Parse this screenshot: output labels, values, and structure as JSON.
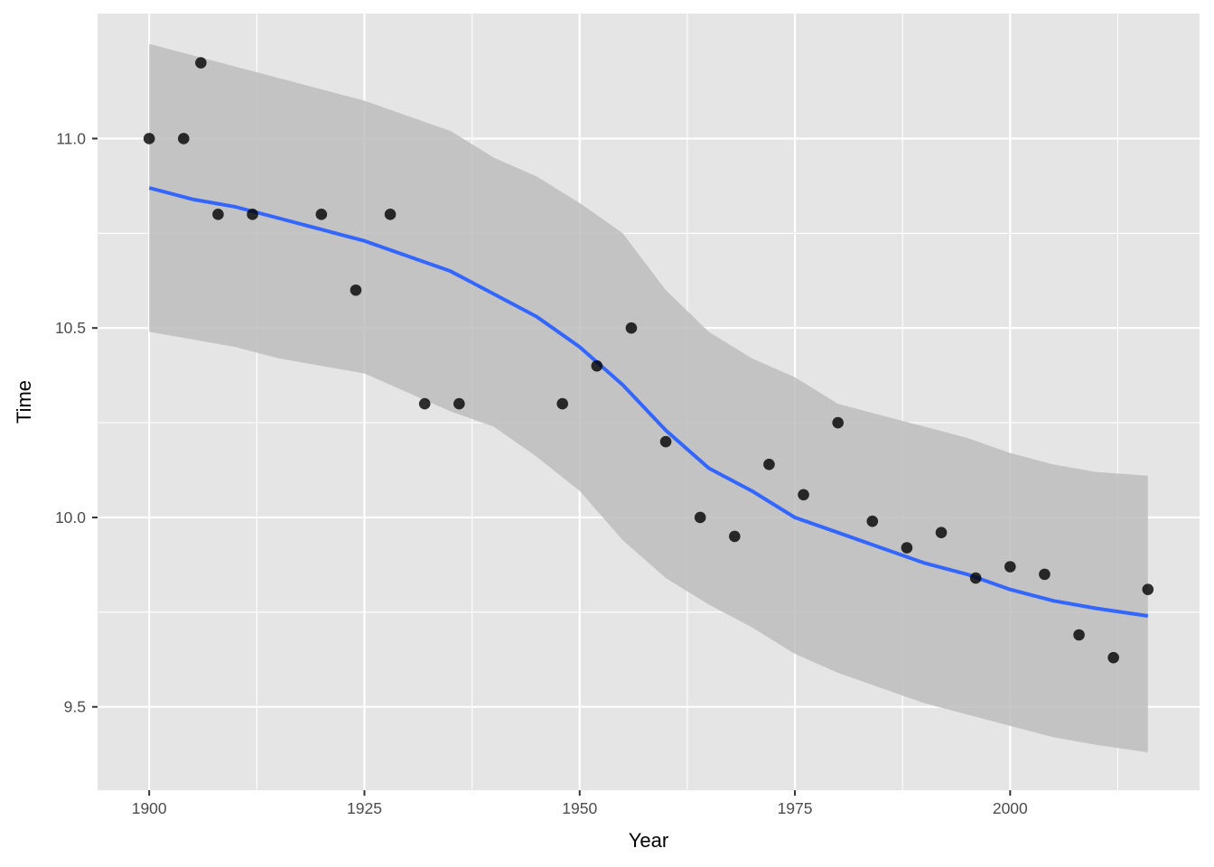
{
  "chart_data": {
    "type": "scatter",
    "title": "",
    "xlabel": "Year",
    "ylabel": "Time",
    "xlim": [
      1894,
      2022
    ],
    "ylim": [
      9.28,
      11.33
    ],
    "x_ticks": [
      1900,
      1925,
      1950,
      1975,
      2000
    ],
    "x_tick_labels": [
      "1900",
      "1925",
      "1950",
      "1975",
      "2000"
    ],
    "x_minor_ticks": [
      1912.5,
      1937.5,
      1962.5,
      1987.5,
      2012.5
    ],
    "y_ticks": [
      9.5,
      10.0,
      10.5,
      11.0
    ],
    "y_tick_labels": [
      "9.5",
      "10.0",
      "10.5",
      "11.0"
    ],
    "y_minor_ticks": [
      9.75,
      10.25,
      10.75
    ],
    "grid": true,
    "legend": "none",
    "colors": {
      "panel_background": "#e5e5e5",
      "grid": "#ffffff",
      "points": "#000000",
      "smooth_line": "#3366ff",
      "confidence_band": "#bdbdbd"
    },
    "points": {
      "x": [
        1900,
        1904,
        1906,
        1908,
        1912,
        1920,
        1924,
        1928,
        1932,
        1936,
        1948,
        1952,
        1956,
        1960,
        1964,
        1968,
        1972,
        1976,
        1980,
        1984,
        1988,
        1992,
        1996,
        2000,
        2004,
        2008,
        2012,
        2016
      ],
      "y": [
        11.0,
        11.0,
        11.2,
        10.8,
        10.8,
        10.8,
        10.6,
        10.8,
        10.3,
        10.3,
        10.3,
        10.4,
        10.5,
        10.2,
        10.0,
        9.95,
        10.14,
        10.06,
        10.25,
        9.99,
        9.92,
        9.96,
        9.84,
        9.87,
        9.85,
        9.69,
        9.63,
        9.81
      ]
    },
    "smooth_line": {
      "x": [
        1900,
        1905,
        1910,
        1915,
        1920,
        1925,
        1930,
        1935,
        1940,
        1945,
        1950,
        1955,
        1960,
        1965,
        1970,
        1975,
        1980,
        1985,
        1990,
        1995,
        2000,
        2005,
        2010,
        2016
      ],
      "y": [
        10.87,
        10.84,
        10.82,
        10.79,
        10.76,
        10.73,
        10.69,
        10.65,
        10.59,
        10.53,
        10.45,
        10.35,
        10.23,
        10.13,
        10.07,
        10.0,
        9.96,
        9.92,
        9.88,
        9.85,
        9.81,
        9.78,
        9.76,
        9.74
      ]
    },
    "confidence_band": {
      "x": [
        1900,
        1905,
        1910,
        1915,
        1920,
        1925,
        1930,
        1935,
        1940,
        1945,
        1950,
        1955,
        1960,
        1965,
        1970,
        1975,
        1980,
        1985,
        1990,
        1995,
        2000,
        2005,
        2010,
        2016
      ],
      "lower": [
        10.49,
        10.47,
        10.45,
        10.42,
        10.4,
        10.38,
        10.33,
        10.28,
        10.24,
        10.16,
        10.07,
        9.94,
        9.84,
        9.77,
        9.71,
        9.64,
        9.59,
        9.55,
        9.51,
        9.48,
        9.45,
        9.42,
        9.4,
        9.38
      ],
      "upper": [
        11.25,
        11.22,
        11.19,
        11.16,
        11.13,
        11.1,
        11.06,
        11.02,
        10.95,
        10.9,
        10.83,
        10.75,
        10.6,
        10.49,
        10.42,
        10.37,
        10.3,
        10.27,
        10.24,
        10.21,
        10.17,
        10.14,
        10.12,
        10.11
      ]
    }
  }
}
